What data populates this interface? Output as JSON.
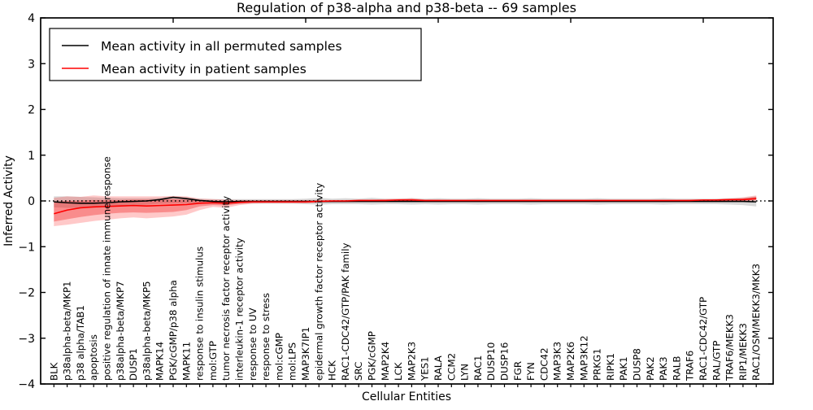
{
  "chart_data": {
    "type": "line",
    "title": "Regulation of p38-alpha and p38-beta -- 69 samples",
    "xlabel": "Cellular Entities",
    "ylabel": "Inferred Activity",
    "ylim": [
      -4,
      4
    ],
    "yticks": {
      "values": [
        4,
        3,
        2,
        1,
        0,
        -1,
        -2,
        -3,
        -4
      ],
      "labels": [
        "4",
        "3",
        "2",
        "1",
        "0",
        "−1",
        "−2",
        "−3",
        "−4"
      ]
    },
    "x_top_ticks": [
      10,
      20,
      30,
      40,
      50
    ],
    "grid": false,
    "legend_position": "upper-left",
    "background_color": "#ffffff",
    "spine_color": "#000000",
    "zero_line": {
      "style": "dotted",
      "color": "#000000",
      "y": 0
    },
    "categories": [
      "BLK",
      "p38alpha-beta/MKP1",
      "p38 alpha/TAB1",
      "apoptosis",
      "positive regulation of innate immune response",
      "p38alpha-beta/MKP7",
      "DUSP1",
      "p38alpha-beta/MKP5",
      "MAPK14",
      "PGK/cGMP/p38 alpha",
      "MAPK11",
      "response to insulin stimulus",
      "mol:GTP",
      "tumor necrosis factor receptor activity",
      "interleukin-1 receptor activity",
      "response to UV",
      "response to stress",
      "mol:cGMP",
      "mol:LPS",
      "MAP3K7IP1",
      "epidermal growth factor receptor activity",
      "HCK",
      "RAC1-CDC42/GTP/PAK family",
      "SRC",
      "PGK/cGMP",
      "MAP2K4",
      "LCK",
      "MAP2K3",
      "YES1",
      "RALA",
      "CCM2",
      "LYN",
      "RAC1",
      "DUSP10",
      "DUSP16",
      "FGR",
      "FYN",
      "CDC42",
      "MAP3K3",
      "MAP2K6",
      "MAP3K12",
      "PRKG1",
      "RIPK1",
      "PAK1",
      "DUSP8",
      "PAK2",
      "PAK3",
      "RALB",
      "TRAF6",
      "RAC1-CDC42/GTP",
      "RAL/GTP",
      "TRAF6/MEKK3",
      "RIP1/MEKK3",
      "RAC1/OSM/MEKK3/MKK3"
    ],
    "series": [
      {
        "name": "Mean activity in all permuted samples",
        "color": "#000000",
        "values": [
          -0.02,
          -0.04,
          -0.05,
          -0.05,
          -0.04,
          -0.02,
          -0.01,
          0.0,
          0.03,
          0.08,
          0.05,
          0.01,
          -0.01,
          -0.02,
          -0.01,
          -0.01,
          -0.01,
          -0.01,
          -0.01,
          -0.01,
          -0.01,
          -0.01,
          -0.01,
          -0.01,
          -0.01,
          -0.01,
          -0.01,
          -0.01,
          -0.01,
          -0.01,
          -0.01,
          -0.01,
          -0.01,
          -0.01,
          -0.01,
          -0.01,
          -0.01,
          -0.01,
          -0.01,
          -0.01,
          -0.01,
          -0.01,
          -0.01,
          -0.01,
          -0.01,
          -0.01,
          -0.01,
          -0.01,
          -0.01,
          -0.01,
          -0.01,
          -0.01,
          -0.01,
          -0.02
        ]
      },
      {
        "name": "Mean activity in patient samples",
        "color": "#ff0000",
        "values": [
          -0.28,
          -0.2,
          -0.15,
          -0.13,
          -0.12,
          -0.11,
          -0.1,
          -0.11,
          -0.1,
          -0.09,
          -0.08,
          -0.05,
          -0.04,
          -0.05,
          -0.03,
          -0.02,
          -0.02,
          -0.02,
          -0.02,
          -0.02,
          -0.01,
          0.0,
          0.0,
          0.01,
          0.01,
          0.01,
          0.02,
          0.02,
          0.01,
          0.01,
          0.01,
          0.01,
          0.01,
          0.01,
          0.01,
          0.01,
          0.01,
          0.01,
          0.01,
          0.01,
          0.01,
          0.01,
          0.01,
          0.01,
          0.01,
          0.01,
          0.01,
          0.01,
          0.01,
          0.02,
          0.02,
          0.03,
          0.03,
          0.05
        ]
      }
    ],
    "bands": [
      {
        "name": "permuted-samples-spread",
        "color": "rgba(128,128,128,0.30)",
        "upper": [
          0.1,
          0.1,
          0.09,
          0.08,
          0.07,
          0.06,
          0.06,
          0.06,
          0.07,
          0.1,
          0.08,
          0.05,
          0.04,
          0.04,
          0.04,
          0.04,
          0.04,
          0.04,
          0.04,
          0.05,
          0.07,
          0.05,
          0.06,
          0.05,
          0.07,
          0.05,
          0.05,
          0.06,
          0.05,
          0.06,
          0.05,
          0.05,
          0.06,
          0.05,
          0.05,
          0.05,
          0.06,
          0.05,
          0.05,
          0.05,
          0.05,
          0.06,
          0.05,
          0.05,
          0.05,
          0.05,
          0.06,
          0.05,
          0.05,
          0.05,
          0.05,
          0.06,
          0.07,
          0.1
        ],
        "lower": [
          -0.14,
          -0.15,
          -0.15,
          -0.15,
          -0.14,
          -0.12,
          -0.1,
          -0.08,
          -0.06,
          -0.05,
          -0.05,
          -0.06,
          -0.06,
          -0.07,
          -0.06,
          -0.06,
          -0.06,
          -0.06,
          -0.06,
          -0.07,
          -0.08,
          -0.07,
          -0.07,
          -0.07,
          -0.08,
          -0.07,
          -0.07,
          -0.08,
          -0.07,
          -0.08,
          -0.07,
          -0.07,
          -0.08,
          -0.07,
          -0.07,
          -0.07,
          -0.08,
          -0.07,
          -0.07,
          -0.07,
          -0.07,
          -0.08,
          -0.07,
          -0.07,
          -0.07,
          -0.07,
          -0.08,
          -0.07,
          -0.07,
          -0.07,
          -0.07,
          -0.08,
          -0.09,
          -0.12
        ]
      },
      {
        "name": "patient-samples-outer-spread",
        "color": "rgba(255,40,40,0.25)",
        "upper": [
          0.07,
          0.1,
          0.09,
          0.12,
          0.1,
          0.1,
          0.1,
          0.1,
          0.1,
          0.11,
          0.1,
          0.05,
          0.04,
          0.03,
          0.02,
          0.02,
          0.02,
          0.02,
          0.02,
          0.02,
          0.02,
          0.02,
          0.02,
          0.03,
          0.03,
          0.04,
          0.05,
          0.06,
          0.03,
          0.03,
          0.02,
          0.02,
          0.02,
          0.02,
          0.02,
          0.02,
          0.02,
          0.02,
          0.02,
          0.02,
          0.02,
          0.02,
          0.02,
          0.02,
          0.02,
          0.02,
          0.02,
          0.02,
          0.03,
          0.03,
          0.04,
          0.05,
          0.08,
          0.12
        ],
        "lower": [
          -0.55,
          -0.52,
          -0.48,
          -0.44,
          -0.41,
          -0.38,
          -0.36,
          -0.38,
          -0.36,
          -0.34,
          -0.3,
          -0.2,
          -0.13,
          -0.15,
          -0.09,
          -0.06,
          -0.05,
          -0.05,
          -0.05,
          -0.05,
          -0.04,
          -0.03,
          -0.03,
          -0.02,
          -0.02,
          -0.02,
          -0.02,
          -0.02,
          -0.02,
          -0.02,
          -0.02,
          -0.02,
          -0.02,
          -0.02,
          -0.02,
          -0.02,
          -0.02,
          -0.02,
          -0.02,
          -0.02,
          -0.02,
          -0.02,
          -0.02,
          -0.02,
          -0.02,
          -0.02,
          -0.02,
          -0.02,
          -0.02,
          -0.02,
          -0.02,
          -0.02,
          -0.01,
          0.0
        ]
      },
      {
        "name": "patient-samples-inner-spread",
        "color": "rgba(235,0,0,0.30)",
        "upper": [
          -0.02,
          0.0,
          0.01,
          0.02,
          0.02,
          0.02,
          0.03,
          0.03,
          0.03,
          0.04,
          0.03,
          0.01,
          0.01,
          0.0,
          0.0,
          0.0,
          0.0,
          0.0,
          0.0,
          0.0,
          0.0,
          0.01,
          0.01,
          0.02,
          0.02,
          0.02,
          0.03,
          0.04,
          0.02,
          0.02,
          0.01,
          0.01,
          0.01,
          0.01,
          0.01,
          0.01,
          0.01,
          0.01,
          0.01,
          0.01,
          0.01,
          0.01,
          0.01,
          0.01,
          0.01,
          0.01,
          0.01,
          0.01,
          0.02,
          0.02,
          0.03,
          0.03,
          0.05,
          0.09
        ],
        "lower": [
          -0.45,
          -0.4,
          -0.35,
          -0.31,
          -0.28,
          -0.26,
          -0.25,
          -0.26,
          -0.25,
          -0.24,
          -0.2,
          -0.12,
          -0.09,
          -0.1,
          -0.06,
          -0.04,
          -0.04,
          -0.04,
          -0.04,
          -0.04,
          -0.03,
          -0.02,
          -0.02,
          -0.01,
          -0.01,
          -0.01,
          -0.01,
          -0.01,
          -0.01,
          -0.01,
          -0.01,
          -0.01,
          -0.01,
          -0.01,
          -0.01,
          -0.01,
          -0.01,
          -0.01,
          -0.01,
          -0.01,
          -0.01,
          -0.01,
          -0.01,
          -0.01,
          -0.01,
          -0.01,
          -0.01,
          -0.01,
          -0.01,
          -0.01,
          -0.01,
          -0.01,
          0.0,
          0.03
        ]
      }
    ],
    "legend": {
      "entries": [
        {
          "label": "Mean activity in all permuted samples",
          "color": "#000000"
        },
        {
          "label": "Mean activity in patient samples",
          "color": "#ff0000"
        }
      ]
    }
  }
}
